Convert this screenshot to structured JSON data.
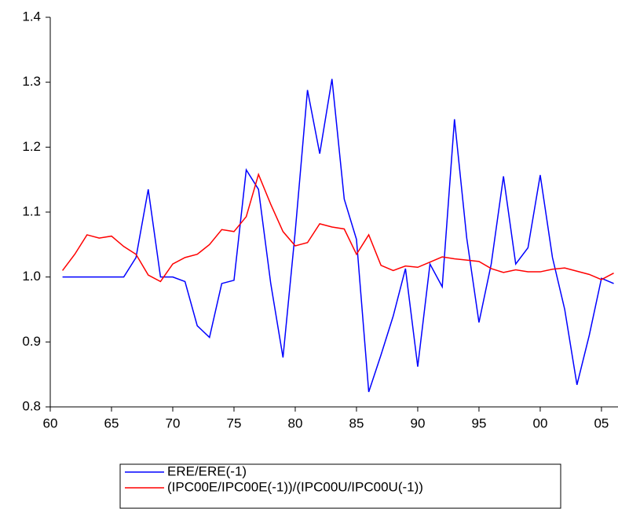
{
  "chart_data": {
    "type": "line",
    "x": [
      1961,
      1962,
      1963,
      1964,
      1965,
      1966,
      1967,
      1968,
      1969,
      1970,
      1971,
      1972,
      1973,
      1974,
      1975,
      1976,
      1977,
      1978,
      1979,
      1980,
      1981,
      1982,
      1983,
      1984,
      1985,
      1986,
      1987,
      1988,
      1989,
      1990,
      1991,
      1992,
      1993,
      1994,
      1995,
      1996,
      1997,
      1998,
      1999,
      2000,
      2001,
      2002,
      2003,
      2004,
      2005,
      2006
    ],
    "series": [
      {
        "name": "ERE/ERE(-1)",
        "color": "#0000ff",
        "values": [
          1.0,
          1.0,
          1.0,
          1.0,
          1.0,
          1.0,
          1.03,
          1.135,
          1.0,
          1.0,
          0.993,
          0.925,
          0.907,
          0.99,
          0.995,
          1.165,
          1.135,
          0.99,
          0.876,
          1.07,
          1.288,
          1.19,
          1.305,
          1.12,
          1.058,
          0.823,
          0.88,
          0.94,
          1.013,
          0.862,
          1.02,
          0.985,
          1.243,
          1.06,
          0.93,
          1.02,
          1.155,
          1.02,
          1.045,
          1.157,
          1.03,
          0.95,
          0.834,
          0.91,
          0.998,
          0.99
        ]
      },
      {
        "name": "(IPC00E/IPC00E(-1))/(IPC00U/IPC00U(-1))",
        "color": "#ff0000",
        "values": [
          1.01,
          1.035,
          1.065,
          1.06,
          1.063,
          1.047,
          1.035,
          1.003,
          0.993,
          1.02,
          1.03,
          1.035,
          1.05,
          1.073,
          1.07,
          1.093,
          1.158,
          1.112,
          1.07,
          1.048,
          1.053,
          1.082,
          1.077,
          1.074,
          1.035,
          1.065,
          1.018,
          1.01,
          1.017,
          1.015,
          1.023,
          1.031,
          1.028,
          1.026,
          1.024,
          1.013,
          1.007,
          1.011,
          1.008,
          1.008,
          1.012,
          1.014,
          1.009,
          1.004,
          0.996,
          1.006
        ]
      }
    ],
    "xlim": [
      1960,
      2006.35
    ],
    "xticks": [
      {
        "value": 1960,
        "label": "60"
      },
      {
        "value": 1965,
        "label": "65"
      },
      {
        "value": 1970,
        "label": "70"
      },
      {
        "value": 1975,
        "label": "75"
      },
      {
        "value": 1980,
        "label": "80"
      },
      {
        "value": 1985,
        "label": "85"
      },
      {
        "value": 1990,
        "label": "90"
      },
      {
        "value": 1995,
        "label": "95"
      },
      {
        "value": 2000,
        "label": "00"
      },
      {
        "value": 2005,
        "label": "05"
      }
    ],
    "ylim": [
      0.8,
      1.4
    ],
    "yticks": [
      {
        "value": 0.8,
        "label": "0.8"
      },
      {
        "value": 0.9,
        "label": "0.9"
      },
      {
        "value": 1.0,
        "label": "1.0"
      },
      {
        "value": 1.1,
        "label": "1.1"
      },
      {
        "value": 1.2,
        "label": "1.2"
      },
      {
        "value": 1.3,
        "label": "1.3"
      },
      {
        "value": 1.4,
        "label": "1.4"
      }
    ],
    "grid": false,
    "legend": "bottom"
  }
}
